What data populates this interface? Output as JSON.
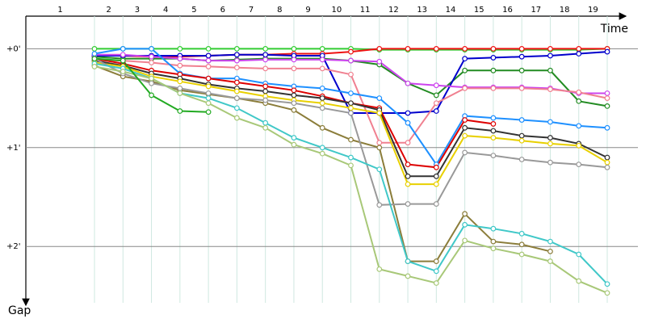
{
  "chart_data": {
    "type": "line",
    "x_label": "Time",
    "y_label": "Gap",
    "categories": [
      "1",
      "2",
      "3",
      "4",
      "5",
      "6",
      "7",
      "8",
      "9",
      "10",
      "11",
      "12",
      "13",
      "14",
      "15",
      "16",
      "17",
      "18",
      "19"
    ],
    "ylim": [
      -0.33,
      2.57
    ],
    "y_inverted": true,
    "yticks": [
      {
        "value": 0,
        "label": "+0'"
      },
      {
        "value": 1,
        "label": "+1'"
      },
      {
        "value": 2,
        "label": "+2'"
      }
    ],
    "grid": true,
    "series": [
      {
        "color": "#33cc33",
        "values": [
          0.0,
          0.0,
          0.0,
          0.0,
          0.0,
          0.0,
          0.0,
          0.0,
          0.0,
          0.0,
          0.01,
          0.01,
          0.01,
          0.01,
          0.01,
          0.01,
          0.01,
          0.01,
          0.0
        ]
      },
      {
        "color": "#ee1111",
        "values": [
          0.07,
          0.07,
          0.08,
          0.08,
          0.07,
          0.06,
          0.06,
          0.05,
          0.05,
          0.03,
          0.0,
          0.0,
          0.0,
          0.0,
          0.0,
          0.0,
          0.0,
          0.0,
          0.0
        ]
      },
      {
        "color": "#228b22",
        "values": [
          0.08,
          0.1,
          0.1,
          0.1,
          0.12,
          0.11,
          0.1,
          0.1,
          0.1,
          0.12,
          0.16,
          0.35,
          0.47,
          0.22,
          0.22,
          0.22,
          0.22,
          0.53,
          0.58
        ]
      },
      {
        "color": "#0000cc",
        "values": [
          0.07,
          0.07,
          0.07,
          0.07,
          0.07,
          0.06,
          0.06,
          0.07,
          0.07,
          0.65,
          0.65,
          0.65,
          0.63,
          0.1,
          0.09,
          0.08,
          0.07,
          0.05,
          0.03
        ]
      },
      {
        "color": "#cc44ee",
        "values": [
          0.06,
          0.06,
          0.08,
          0.1,
          0.12,
          0.12,
          0.11,
          0.11,
          0.11,
          0.12,
          0.13,
          0.35,
          0.37,
          0.39,
          0.39,
          0.39,
          0.4,
          0.45,
          0.45
        ]
      },
      {
        "color": "#f08090",
        "values": [
          0.12,
          0.12,
          0.14,
          0.17,
          0.18,
          0.19,
          0.2,
          0.2,
          0.2,
          0.26,
          0.95,
          0.95,
          0.55,
          0.4,
          0.4,
          0.4,
          0.41,
          0.44,
          0.5
        ]
      },
      {
        "color": "#1e90ff",
        "values": [
          0.05,
          0.0,
          0.0,
          0.25,
          0.3,
          0.3,
          0.35,
          0.38,
          0.4,
          0.45,
          0.5,
          0.75,
          1.17,
          0.68,
          0.7,
          0.72,
          0.74,
          0.78,
          0.8
        ]
      },
      {
        "color": "#dd0000",
        "values": [
          0.1,
          0.15,
          0.22,
          0.26,
          0.3,
          0.34,
          0.38,
          0.42,
          0.48,
          0.55,
          0.6,
          1.17,
          1.2,
          0.72,
          0.76,
          null,
          null,
          null,
          null
        ]
      },
      {
        "color": "#333333",
        "values": [
          0.12,
          0.17,
          0.25,
          0.3,
          0.36,
          0.4,
          0.43,
          0.47,
          0.5,
          0.55,
          0.62,
          1.29,
          1.29,
          0.8,
          0.83,
          0.88,
          0.9,
          0.96,
          1.1
        ]
      },
      {
        "color": "#e8d000",
        "values": [
          0.14,
          0.18,
          0.28,
          0.33,
          0.38,
          0.43,
          0.48,
          0.52,
          0.55,
          0.6,
          0.65,
          1.37,
          1.37,
          0.88,
          0.9,
          0.93,
          0.96,
          0.98,
          1.15
        ]
      },
      {
        "color": "#8b7d3a",
        "values": [
          0.17,
          0.28,
          0.33,
          0.42,
          0.46,
          0.5,
          0.55,
          0.62,
          0.8,
          0.92,
          1.0,
          2.15,
          2.15,
          1.67,
          1.95,
          1.98,
          2.05,
          null,
          null
        ]
      },
      {
        "color": "#999999",
        "values": [
          0.1,
          0.25,
          0.35,
          0.4,
          0.45,
          0.5,
          0.52,
          0.55,
          0.6,
          0.65,
          1.58,
          1.57,
          1.57,
          1.05,
          1.08,
          1.12,
          1.15,
          1.17,
          1.2
        ]
      },
      {
        "color": "#40c8c8",
        "values": [
          0.15,
          0.2,
          0.3,
          0.45,
          0.5,
          0.6,
          0.75,
          0.9,
          1.0,
          1.1,
          1.22,
          2.15,
          2.25,
          1.78,
          1.82,
          1.87,
          1.95,
          2.08,
          2.38
        ]
      },
      {
        "color": "#a8c878",
        "values": [
          0.18,
          0.23,
          0.3,
          0.45,
          0.55,
          0.7,
          0.8,
          0.97,
          1.06,
          1.18,
          2.23,
          2.3,
          2.37,
          1.94,
          2.02,
          2.08,
          2.15,
          2.35,
          2.47
        ]
      },
      {
        "color": "#22aa22",
        "values": [
          0.1,
          0.12,
          0.47,
          0.63,
          0.64,
          null,
          null,
          null,
          null,
          null,
          null,
          null,
          null,
          null,
          null,
          null,
          null,
          null,
          null
        ]
      }
    ]
  }
}
